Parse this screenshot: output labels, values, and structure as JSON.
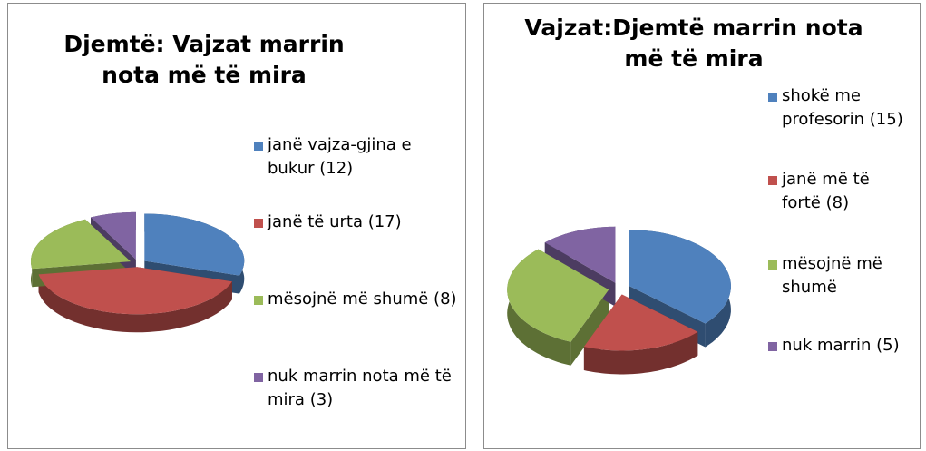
{
  "chart_data": [
    {
      "type": "pie",
      "title": "Djemtë: Vajzat marrin nota më të mira",
      "categories": [
        "janë vajza-gjina e bukur (12)",
        "janë të urta (17)",
        "mësojnë më shumë (8)",
        "nuk marrin nota më të mira (3)"
      ],
      "values": [
        12,
        17,
        8,
        3
      ],
      "colors": [
        "#4f81bd",
        "#c0504d",
        "#9bbb59",
        "#8064a2"
      ]
    },
    {
      "type": "pie",
      "title": "Vajzat:Djemtë marrin nota më të mira",
      "categories": [
        "shokë me profesorin (15)",
        "janë më të fortë (8)",
        "mësojnë më shumë",
        "nuk marrin (5)"
      ],
      "values": [
        15,
        8,
        13,
        5
      ],
      "colors": [
        "#4f81bd",
        "#c0504d",
        "#9bbb59",
        "#8064a2"
      ]
    }
  ]
}
